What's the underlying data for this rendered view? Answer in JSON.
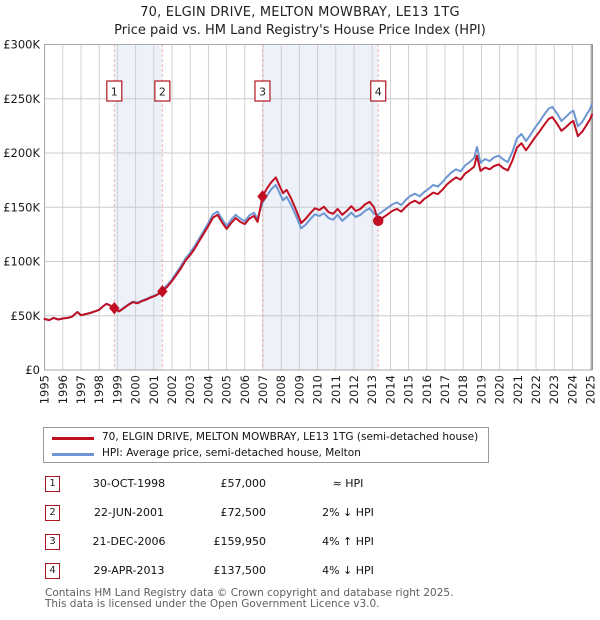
{
  "title": "70, ELGIN DRIVE, MELTON MOWBRAY, LE13 1TG",
  "subtitle": "Price paid vs. HM Land Registry's House Price Index (HPI)",
  "colors": {
    "property": "#c00e22",
    "hpi": "#6e96d2",
    "band": "#edf1fa",
    "dashed": "#f59a9e",
    "grid": "#cccccc",
    "frame": "#aaaaaa",
    "right_spine": "#555555",
    "event_box_border": "#b01620",
    "tick_text": "#1a1a1a"
  },
  "chart_data": {
    "type": "line",
    "title": "70, ELGIN DRIVE, MELTON MOWBRAY, LE13 1TG — Price paid vs. HPI",
    "xlabel": "",
    "ylabel": "",
    "x_range": [
      1995,
      2025.08
    ],
    "y_range": [
      0,
      300000
    ],
    "grid": true,
    "legend_position": "below",
    "x_ticks": [
      1995,
      1996,
      1997,
      1998,
      1999,
      2000,
      2001,
      2002,
      2003,
      2004,
      2005,
      2006,
      2007,
      2008,
      2009,
      2010,
      2011,
      2012,
      2013,
      2014,
      2015,
      2016,
      2017,
      2018,
      2019,
      2020,
      2021,
      2022,
      2023,
      2024,
      2025
    ],
    "y_ticks": [
      {
        "v": 0,
        "label": "£0"
      },
      {
        "v": 50000,
        "label": "£50K"
      },
      {
        "v": 100000,
        "label": "£100K"
      },
      {
        "v": 150000,
        "label": "£150K"
      },
      {
        "v": 200000,
        "label": "£200K"
      },
      {
        "v": 250000,
        "label": "£250K"
      },
      {
        "v": 300000,
        "label": "£300K"
      }
    ],
    "bands": [
      [
        1998.83,
        2001.47
      ],
      [
        2006.97,
        2013.33
      ]
    ],
    "x": [
      1995.0,
      1995.25,
      1995.5,
      1995.75,
      1996.0,
      1996.25,
      1996.5,
      1996.8,
      1997.0,
      1997.25,
      1997.5,
      1997.75,
      1998.0,
      1998.2,
      1998.4,
      1998.6,
      1998.83,
      1999.1,
      1999.35,
      1999.6,
      1999.85,
      2000.1,
      2000.35,
      2000.6,
      2000.85,
      2001.1,
      2001.3,
      2001.47,
      2001.75,
      2002.0,
      2002.25,
      2002.5,
      2002.75,
      2003.0,
      2003.25,
      2003.5,
      2003.75,
      2004.0,
      2004.25,
      2004.5,
      2004.75,
      2005.0,
      2005.25,
      2005.5,
      2005.75,
      2006.0,
      2006.25,
      2006.5,
      2006.7,
      2006.97,
      2007.2,
      2007.45,
      2007.7,
      2007.9,
      2008.1,
      2008.3,
      2008.55,
      2008.8,
      2009.1,
      2009.35,
      2009.6,
      2009.85,
      2010.1,
      2010.35,
      2010.6,
      2010.85,
      2011.1,
      2011.35,
      2011.6,
      2011.85,
      2012.1,
      2012.35,
      2012.6,
      2012.85,
      2013.1,
      2013.33,
      2013.6,
      2013.85,
      2014.1,
      2014.35,
      2014.6,
      2014.85,
      2015.1,
      2015.35,
      2015.6,
      2015.85,
      2016.1,
      2016.35,
      2016.6,
      2016.85,
      2017.1,
      2017.35,
      2017.6,
      2017.85,
      2018.1,
      2018.35,
      2018.6,
      2018.75,
      2018.95,
      2019.2,
      2019.45,
      2019.7,
      2019.95,
      2020.2,
      2020.45,
      2020.7,
      2020.95,
      2021.2,
      2021.45,
      2021.7,
      2021.95,
      2022.2,
      2022.45,
      2022.7,
      2022.9,
      2023.15,
      2023.4,
      2023.65,
      2023.9,
      2024.05,
      2024.3,
      2024.55,
      2024.8,
      2024.95,
      2025.08
    ],
    "series": [
      {
        "id": "hpi",
        "name": "HPI: Average price, semi-detached house, Melton",
        "color": "#6e96d2",
        "values": [
          47000,
          46000,
          48000,
          46500,
          47500,
          48000,
          49000,
          53500,
          50500,
          51500,
          52500,
          54000,
          55500,
          58500,
          61000,
          59500,
          57000,
          54500,
          57500,
          60500,
          63000,
          62000,
          64000,
          65500,
          67500,
          69000,
          71000,
          74000,
          78500,
          83500,
          90000,
          96000,
          103000,
          108000,
          114500,
          121500,
          128500,
          135500,
          143500,
          146000,
          139000,
          132500,
          138500,
          143000,
          139500,
          137000,
          142500,
          145000,
          139500,
          154000,
          160500,
          166500,
          170500,
          163500,
          156500,
          159500,
          152000,
          142500,
          130500,
          134000,
          139000,
          143500,
          142000,
          144500,
          140000,
          138500,
          143000,
          137500,
          141000,
          145000,
          141000,
          143000,
          146500,
          149000,
          144000,
          143200,
          146500,
          149500,
          152500,
          154500,
          152000,
          157000,
          160500,
          162500,
          160000,
          164000,
          167000,
          170500,
          169000,
          173000,
          178000,
          182000,
          185000,
          183000,
          188500,
          191500,
          195500,
          205500,
          191000,
          194500,
          192500,
          196000,
          197500,
          194000,
          191500,
          201000,
          213500,
          217500,
          211000,
          217000,
          223500,
          229000,
          235500,
          241000,
          242500,
          236500,
          229500,
          233500,
          237500,
          239000,
          224500,
          229000,
          236000,
          240000,
          245500
        ]
      },
      {
        "id": "property",
        "name": "70, ELGIN DRIVE, MELTON MOWBRAY, LE13 1TG (semi-detached house)",
        "color": "#c00e22",
        "values": [
          47000,
          46000,
          48000,
          46500,
          47500,
          48000,
          49000,
          53500,
          50500,
          51500,
          52500,
          54000,
          55500,
          58500,
          61000,
          59500,
          57000,
          54000,
          57000,
          60000,
          62500,
          61500,
          63500,
          65000,
          67000,
          68500,
          70500,
          72500,
          77000,
          82000,
          88000,
          94000,
          101000,
          106000,
          112000,
          119000,
          126000,
          133000,
          140500,
          143000,
          136000,
          130000,
          135500,
          140000,
          136500,
          134500,
          139500,
          142000,
          136500,
          159950,
          167000,
          173000,
          177500,
          170000,
          163000,
          166000,
          158000,
          148000,
          135500,
          139500,
          144500,
          149000,
          147500,
          150500,
          145500,
          144000,
          148500,
          143000,
          146500,
          151000,
          146500,
          148500,
          152500,
          155000,
          150000,
          137500,
          140500,
          143500,
          146500,
          148500,
          146000,
          150500,
          154000,
          156000,
          153500,
          157500,
          160500,
          163500,
          162000,
          166000,
          171000,
          174500,
          177500,
          175500,
          181000,
          184000,
          187500,
          197500,
          183500,
          186500,
          185000,
          188000,
          189500,
          186000,
          184000,
          193000,
          205000,
          209000,
          202500,
          208500,
          214500,
          220000,
          226000,
          231500,
          233000,
          227000,
          220500,
          224000,
          228000,
          229500,
          215500,
          220000,
          226500,
          230500,
          235500
        ]
      }
    ],
    "sales": [
      {
        "num": "1",
        "date": "30-OCT-1998",
        "year": 1998.83,
        "price": 57000,
        "price_label": "£57,000",
        "vs_hpi": "≈ HPI",
        "marker": "diamond"
      },
      {
        "num": "2",
        "date": "22-JUN-2001",
        "year": 2001.47,
        "price": 72500,
        "price_label": "£72,500",
        "vs_hpi": "2% ↓ HPI",
        "marker": "diamond"
      },
      {
        "num": "3",
        "date": "21-DEC-2006",
        "year": 2006.97,
        "price": 159950,
        "price_label": "£159,950",
        "vs_hpi": "4% ↑ HPI",
        "marker": "diamond"
      },
      {
        "num": "4",
        "date": "29-APR-2013",
        "year": 2013.33,
        "price": 137500,
        "price_label": "£137,500",
        "vs_hpi": "4% ↓ HPI",
        "marker": "circle"
      }
    ]
  },
  "legend": {
    "items": [
      {
        "id": "property",
        "label": "70, ELGIN DRIVE, MELTON MOWBRAY, LE13 1TG (semi-detached house)"
      },
      {
        "id": "hpi",
        "label": "HPI: Average price, semi-detached house, Melton"
      }
    ]
  },
  "table": {
    "rows": [
      {
        "num": "1",
        "date": "30-OCT-1998",
        "price": "£57,000",
        "rel": "≈ HPI"
      },
      {
        "num": "2",
        "date": "22-JUN-2001",
        "price": "£72,500",
        "rel": "2% ↓ HPI"
      },
      {
        "num": "3",
        "date": "21-DEC-2006",
        "price": "£159,950",
        "rel": "4% ↑ HPI"
      },
      {
        "num": "4",
        "date": "29-APR-2013",
        "price": "£137,500",
        "rel": "4% ↓ HPI"
      }
    ]
  },
  "footer": {
    "line1": "Contains HM Land Registry data © Crown copyright and database right 2025.",
    "line2": "This data is licensed under the Open Government Licence v3.0."
  }
}
